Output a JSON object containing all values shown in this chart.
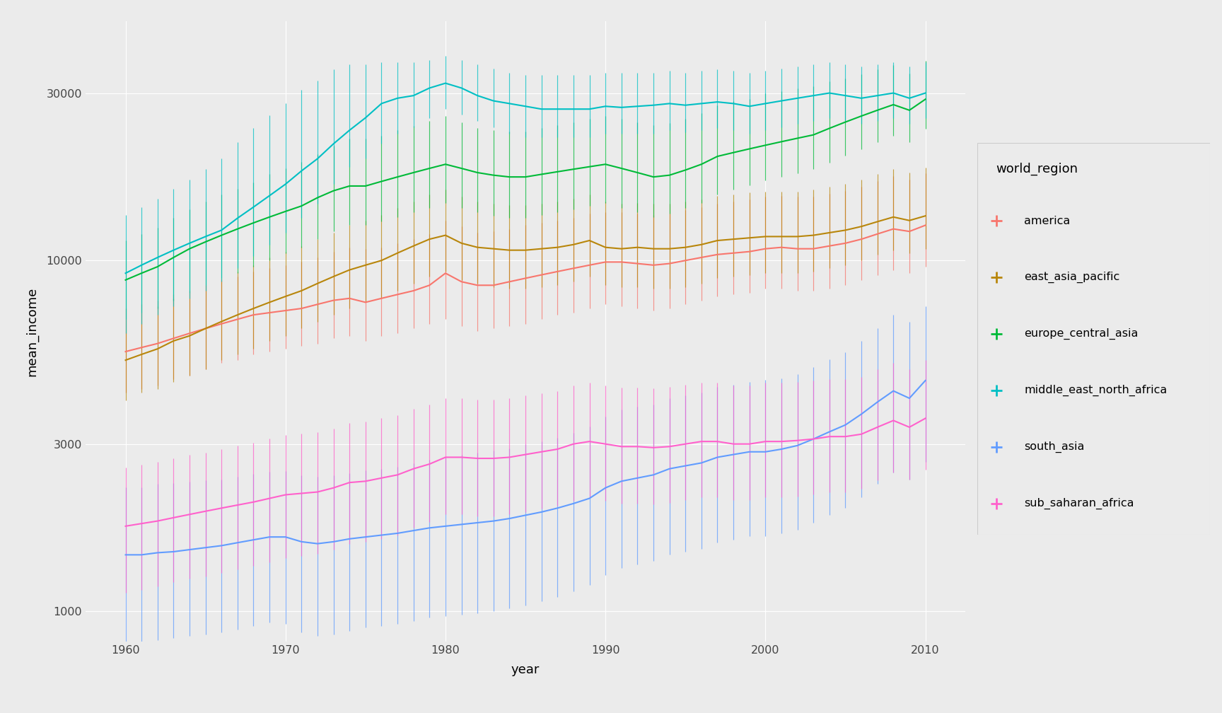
{
  "regions": [
    "america",
    "east_asia_pacific",
    "europe_central_asia",
    "middle_east_north_africa",
    "south_asia",
    "sub_saharan_africa"
  ],
  "colors": {
    "america": "#F8766D",
    "east_asia_pacific": "#B8860B",
    "europe_central_asia": "#00BA38",
    "middle_east_north_africa": "#00BFC4",
    "south_asia": "#619CFF",
    "sub_saharan_africa": "#FF61CC"
  },
  "years": [
    1960,
    1961,
    1962,
    1963,
    1964,
    1965,
    1966,
    1967,
    1968,
    1969,
    1970,
    1971,
    1972,
    1973,
    1974,
    1975,
    1976,
    1977,
    1978,
    1979,
    1980,
    1981,
    1982,
    1983,
    1984,
    1985,
    1986,
    1987,
    1988,
    1989,
    1990,
    1991,
    1992,
    1993,
    1994,
    1995,
    1996,
    1997,
    1998,
    1999,
    2000,
    2001,
    2002,
    2003,
    2004,
    2005,
    2006,
    2007,
    2008,
    2009,
    2010
  ],
  "mean": {
    "america": [
      5500,
      5650,
      5800,
      6000,
      6200,
      6400,
      6600,
      6800,
      7000,
      7100,
      7200,
      7300,
      7500,
      7700,
      7800,
      7600,
      7800,
      8000,
      8200,
      8500,
      9200,
      8700,
      8500,
      8500,
      8700,
      8900,
      9100,
      9300,
      9500,
      9700,
      9900,
      9900,
      9800,
      9700,
      9800,
      10000,
      10200,
      10400,
      10500,
      10600,
      10800,
      10900,
      10800,
      10800,
      11000,
      11200,
      11500,
      11900,
      12300,
      12100,
      12600
    ],
    "east_asia_pacific": [
      5200,
      5400,
      5600,
      5900,
      6100,
      6400,
      6700,
      7000,
      7300,
      7600,
      7900,
      8200,
      8600,
      9000,
      9400,
      9700,
      10000,
      10500,
      11000,
      11500,
      11800,
      11200,
      10900,
      10800,
      10700,
      10700,
      10800,
      10900,
      11100,
      11400,
      10900,
      10800,
      10900,
      10800,
      10800,
      10900,
      11100,
      11400,
      11500,
      11600,
      11700,
      11700,
      11700,
      11800,
      12000,
      12200,
      12500,
      12900,
      13300,
      13000,
      13400
    ],
    "europe_central_asia": [
      8800,
      9200,
      9600,
      10200,
      10800,
      11300,
      11800,
      12300,
      12800,
      13300,
      13800,
      14300,
      15100,
      15800,
      16300,
      16300,
      16800,
      17300,
      17800,
      18300,
      18800,
      18300,
      17800,
      17500,
      17300,
      17300,
      17600,
      17900,
      18200,
      18500,
      18800,
      18300,
      17800,
      17300,
      17500,
      18100,
      18800,
      19800,
      20300,
      20800,
      21300,
      21800,
      22300,
      22800,
      23800,
      24800,
      25800,
      26800,
      27800,
      26800,
      28800
    ],
    "middle_east_north_africa": [
      9200,
      9700,
      10200,
      10700,
      11200,
      11700,
      12200,
      13200,
      14200,
      15300,
      16500,
      18000,
      19500,
      21500,
      23500,
      25500,
      28000,
      29000,
      29500,
      31000,
      32000,
      31000,
      29500,
      28500,
      28000,
      27500,
      27000,
      27000,
      27000,
      27000,
      27500,
      27300,
      27500,
      27700,
      28000,
      27700,
      28000,
      28300,
      28000,
      27500,
      28000,
      28500,
      29000,
      29500,
      30000,
      29500,
      29000,
      29500,
      30000,
      29000,
      30000
    ],
    "south_asia": [
      1450,
      1450,
      1470,
      1480,
      1500,
      1520,
      1540,
      1570,
      1600,
      1630,
      1630,
      1580,
      1560,
      1580,
      1610,
      1630,
      1650,
      1670,
      1700,
      1730,
      1750,
      1770,
      1790,
      1810,
      1840,
      1880,
      1920,
      1970,
      2030,
      2100,
      2250,
      2350,
      2400,
      2450,
      2550,
      2600,
      2650,
      2750,
      2800,
      2850,
      2850,
      2900,
      2970,
      3100,
      3250,
      3400,
      3650,
      3950,
      4250,
      4050,
      4550
    ],
    "sub_saharan_africa": [
      1750,
      1780,
      1810,
      1850,
      1890,
      1930,
      1970,
      2010,
      2050,
      2100,
      2150,
      2170,
      2190,
      2250,
      2330,
      2350,
      2400,
      2450,
      2550,
      2630,
      2750,
      2750,
      2730,
      2730,
      2750,
      2800,
      2850,
      2900,
      3000,
      3050,
      3000,
      2950,
      2950,
      2930,
      2950,
      3000,
      3050,
      3050,
      3000,
      3000,
      3050,
      3050,
      3070,
      3100,
      3150,
      3150,
      3200,
      3350,
      3500,
      3350,
      3550
    ]
  },
  "ymin": {
    "america": [
      4200,
      4300,
      4400,
      4600,
      4700,
      4900,
      5100,
      5200,
      5400,
      5500,
      5600,
      5700,
      5800,
      6000,
      6100,
      5900,
      6100,
      6200,
      6400,
      6600,
      6800,
      6500,
      6300,
      6400,
      6500,
      6600,
      6800,
      7000,
      7100,
      7300,
      7500,
      7400,
      7300,
      7200,
      7300,
      7500,
      7700,
      7900,
      8000,
      8100,
      8300,
      8300,
      8200,
      8200,
      8300,
      8500,
      8800,
      9100,
      9400,
      9200,
      9600
    ],
    "east_asia_pacific": [
      4000,
      4200,
      4300,
      4500,
      4700,
      4900,
      5200,
      5400,
      5600,
      5900,
      6100,
      6400,
      6700,
      7000,
      7300,
      7600,
      7800,
      8200,
      8600,
      9000,
      9300,
      8800,
      8600,
      8400,
      8300,
      8300,
      8400,
      8500,
      8700,
      9000,
      8500,
      8400,
      8400,
      8300,
      8300,
      8400,
      8600,
      8900,
      9000,
      9100,
      9200,
      9200,
      9200,
      9300,
      9500,
      9700,
      10000,
      10400,
      10700,
      10500,
      10800
    ],
    "europe_central_asia": [
      6800,
      7100,
      7300,
      7700,
      8100,
      8500,
      8900,
      9200,
      9600,
      10000,
      10500,
      10900,
      11500,
      12100,
      12600,
      12600,
      12900,
      13300,
      13700,
      14100,
      14600,
      14100,
      13700,
      13400,
      13200,
      13200,
      13500,
      13700,
      14000,
      14300,
      14600,
      14100,
      13700,
      13300,
      13600,
      14100,
      14600,
      15400,
      15900,
      16400,
      16900,
      17300,
      17700,
      18200,
      19000,
      19900,
      20700,
      21700,
      22700,
      21700,
      23700
    ],
    "middle_east_north_africa": [
      6200,
      6600,
      7000,
      7400,
      7800,
      8200,
      8700,
      9500,
      10300,
      11100,
      12000,
      13200,
      14500,
      16500,
      18500,
      19500,
      21500,
      23000,
      24000,
      25500,
      27000,
      26000,
      25000,
      24000,
      23000,
      22500,
      22500,
      22500,
      22500,
      22500,
      23000,
      23000,
      23000,
      23000,
      23500,
      23200,
      23500,
      23800,
      23500,
      23000,
      23500,
      24000,
      24500,
      25000,
      25500,
      25000,
      24500,
      25000,
      25500,
      24500,
      25500
    ],
    "south_asia": [
      820,
      820,
      830,
      840,
      850,
      860,
      870,
      890,
      910,
      930,
      920,
      870,
      850,
      860,
      880,
      900,
      910,
      920,
      940,
      960,
      970,
      980,
      990,
      1000,
      1020,
      1040,
      1070,
      1100,
      1140,
      1190,
      1270,
      1330,
      1360,
      1390,
      1450,
      1480,
      1510,
      1570,
      1600,
      1640,
      1640,
      1670,
      1710,
      1790,
      1880,
      1970,
      2120,
      2310,
      2490,
      2370,
      2670
    ],
    "sub_saharan_africa": [
      1130,
      1150,
      1180,
      1210,
      1240,
      1260,
      1290,
      1320,
      1350,
      1380,
      1420,
      1440,
      1460,
      1500,
      1560,
      1580,
      1610,
      1650,
      1730,
      1800,
      1890,
      1890,
      1870,
      1870,
      1890,
      1920,
      1960,
      2000,
      2070,
      2120,
      2070,
      2030,
      2030,
      2020,
      2040,
      2080,
      2120,
      2120,
      2080,
      2080,
      2120,
      2120,
      2130,
      2150,
      2190,
      2190,
      2240,
      2360,
      2490,
      2380,
      2530
    ]
  },
  "ymax": {
    "america": [
      7300,
      7500,
      7700,
      8000,
      8200,
      8500,
      8800,
      9000,
      9300,
      9500,
      9700,
      9900,
      10200,
      10600,
      10900,
      10800,
      10900,
      11200,
      11500,
      11900,
      13000,
      12500,
      12000,
      12100,
      12300,
      12600,
      12800,
      13000,
      13200,
      13600,
      13700,
      13700,
      13600,
      13500,
      13600,
      13900,
      14200,
      14500,
      14700,
      14900,
      15200,
      15300,
      15200,
      15200,
      15500,
      15800,
      16200,
      16800,
      17400,
      17000,
      17700
    ],
    "east_asia_pacific": [
      6800,
      7100,
      7400,
      7800,
      8100,
      8500,
      8900,
      9300,
      9700,
      10200,
      10600,
      11000,
      11500,
      12000,
      12600,
      13000,
      13500,
      14100,
      14700,
      15400,
      15900,
      15200,
      14700,
      14500,
      14400,
      14400,
      14500,
      14700,
      15000,
      15400,
      14700,
      14500,
      14600,
      14500,
      14500,
      14700,
      14900,
      15300,
      15400,
      15600,
      15700,
      15700,
      15700,
      15900,
      16200,
      16500,
      17000,
      17600,
      18200,
      17800,
      18400
    ],
    "europe_central_asia": [
      11400,
      11900,
      12400,
      13200,
      14000,
      14700,
      15400,
      16000,
      16700,
      17600,
      18300,
      19100,
      20100,
      21200,
      22200,
      22200,
      22700,
      23500,
      24200,
      25000,
      25800,
      24800,
      23800,
      23500,
      23300,
      23300,
      23800,
      24300,
      24800,
      25300,
      25800,
      25300,
      24800,
      24300,
      24600,
      25300,
      26300,
      27600,
      28400,
      28900,
      29900,
      30400,
      30900,
      31400,
      32400,
      33000,
      34000,
      35000,
      36100,
      34100,
      37100
    ],
    "middle_east_north_africa": [
      13500,
      14200,
      15000,
      16000,
      17000,
      18200,
      19500,
      21700,
      23800,
      25900,
      28000,
      30600,
      32600,
      35100,
      36200,
      36200,
      36700,
      36700,
      36700,
      37200,
      38200,
      37200,
      36200,
      35200,
      34200,
      33700,
      33700,
      33700,
      33700,
      33700,
      34200,
      34200,
      34200,
      34200,
      34700,
      34200,
      34700,
      35000,
      34700,
      34200,
      34700,
      35200,
      35700,
      36200,
      36700,
      36200,
      35700,
      36200,
      36700,
      35700,
      36700
    ],
    "south_asia": [
      2260,
      2260,
      2310,
      2320,
      2340,
      2360,
      2380,
      2420,
      2460,
      2500,
      2510,
      2440,
      2420,
      2440,
      2480,
      2520,
      2550,
      2580,
      2640,
      2700,
      2750,
      2790,
      2830,
      2870,
      2920,
      2990,
      3050,
      3130,
      3230,
      3360,
      3590,
      3760,
      3830,
      3890,
      4050,
      4130,
      4200,
      4360,
      4430,
      4510,
      4560,
      4620,
      4740,
      4970,
      5230,
      5470,
      5890,
      6420,
      6990,
      6690,
      7400
    ],
    "sub_saharan_africa": [
      2570,
      2620,
      2670,
      2730,
      2790,
      2840,
      2900,
      2970,
      3030,
      3110,
      3180,
      3210,
      3240,
      3320,
      3440,
      3480,
      3550,
      3630,
      3780,
      3890,
      4050,
      4050,
      4020,
      4020,
      4050,
      4120,
      4190,
      4250,
      4400,
      4490,
      4410,
      4340,
      4340,
      4320,
      4360,
      4420,
      4480,
      4480,
      4410,
      4410,
      4480,
      4480,
      4500,
      4540,
      4600,
      4600,
      4660,
      4890,
      5120,
      4900,
      5200
    ]
  },
  "ylabel": "mean_income",
  "xlabel": "year",
  "legend_title": "world_region",
  "yticks": [
    1000,
    3000,
    10000,
    30000
  ],
  "ytick_labels": [
    "1000",
    "3000",
    "10000",
    "30000"
  ],
  "xticks": [
    1960,
    1970,
    1980,
    1990,
    2000,
    2010
  ],
  "plot_bg": "#EBEBEB",
  "fig_bg": "#EBEBEB",
  "grid_color": "#FFFFFF",
  "legend_bg": "#F2F2F2"
}
